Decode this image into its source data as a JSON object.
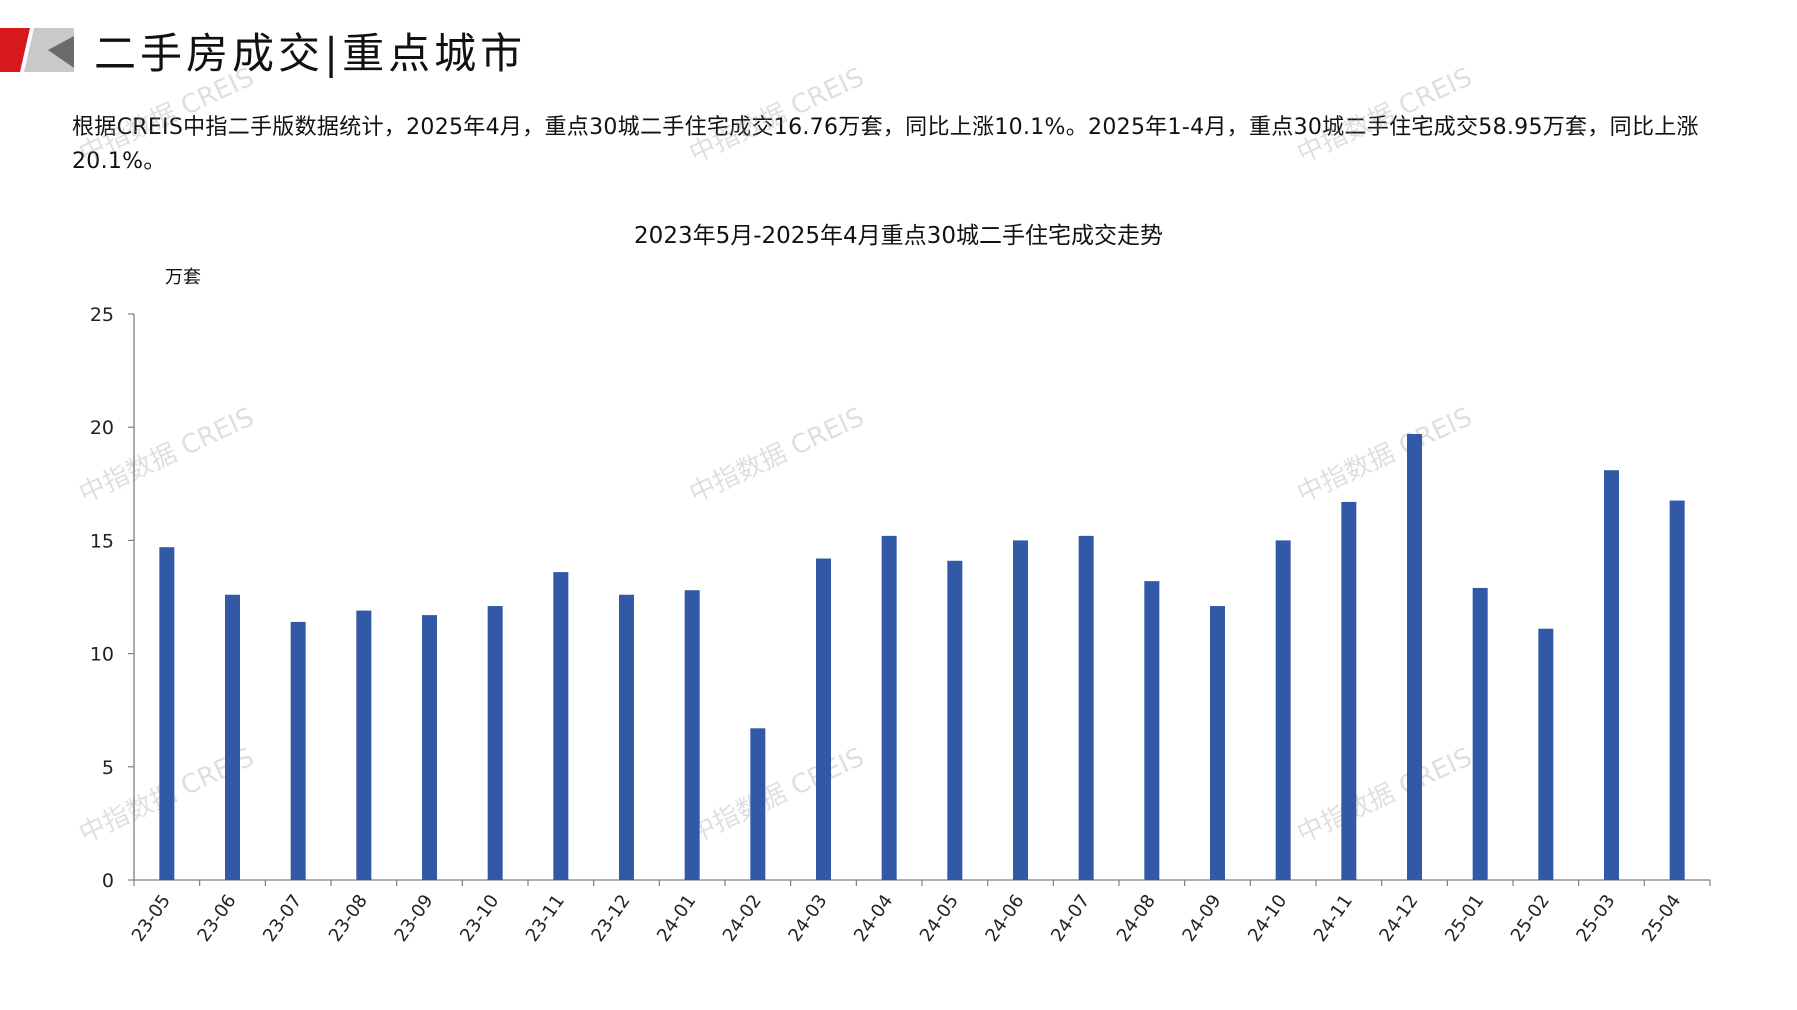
{
  "header": {
    "title": "二手房成交|重点城市"
  },
  "summary": "根据CREIS中指二手版数据统计，2025年4月，重点30城二手住宅成交16.76万套，同比上涨10.1%。2025年1-4月，重点30城二手住宅成交58.95万套，同比上涨20.1%。",
  "watermark": "中指数据 CREIS",
  "colors": {
    "bar": "#3259A5",
    "logo_red": "#D7191C",
    "logo_gray": "#BDBDBD"
  },
  "chart_data": {
    "type": "bar",
    "title": "2023年5月-2025年4月重点30城二手住宅成交走势",
    "ylabel": "万套",
    "xlabel": "",
    "ylim": [
      0,
      25
    ],
    "yticks": [
      0,
      5,
      10,
      15,
      20,
      25
    ],
    "grid": false,
    "categories": [
      "23-05",
      "23-06",
      "23-07",
      "23-08",
      "23-09",
      "23-10",
      "23-11",
      "23-12",
      "24-01",
      "24-02",
      "24-03",
      "24-04",
      "24-05",
      "24-06",
      "24-07",
      "24-08",
      "24-09",
      "24-10",
      "24-11",
      "24-12",
      "25-01",
      "25-02",
      "25-03",
      "25-04"
    ],
    "values": [
      14.7,
      12.6,
      11.4,
      11.9,
      11.7,
      12.1,
      13.6,
      12.6,
      12.8,
      6.7,
      14.2,
      15.2,
      14.1,
      15.0,
      15.2,
      13.2,
      12.1,
      15.0,
      16.7,
      19.7,
      12.9,
      11.1,
      18.1,
      16.76
    ]
  }
}
